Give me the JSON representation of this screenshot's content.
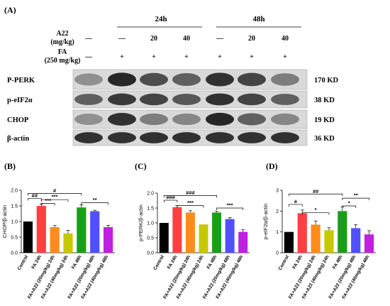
{
  "panel_a": {
    "label": "(A)",
    "group_24h": "24h",
    "group_48h": "48h",
    "a22_label_1": "A22",
    "a22_label_2": "(mg/kg)",
    "fa_label_1": "FA",
    "fa_label_2": "(250 mg/kg)",
    "a22_row": [
      "—",
      "—",
      "20",
      "40",
      "—",
      "20",
      "40"
    ],
    "fa_row": [
      "—",
      "+",
      "+",
      "+",
      "+",
      "+",
      "+"
    ],
    "blots": [
      {
        "protein": "P-PERK",
        "size": "170 KD",
        "intensity": [
          0.35,
          0.9,
          0.7,
          0.6,
          0.85,
          0.75,
          0.45
        ]
      },
      {
        "protein": "p-eIF2α",
        "size": "38 KD",
        "intensity": [
          0.6,
          0.8,
          0.75,
          0.65,
          0.85,
          0.75,
          0.6
        ]
      },
      {
        "protein": "CHOP",
        "size": "19 KD",
        "intensity": [
          0.35,
          0.85,
          0.45,
          0.4,
          0.9,
          0.6,
          0.4
        ]
      },
      {
        "protein": "β-actin",
        "size": "36 KD",
        "intensity": [
          0.85,
          0.85,
          0.85,
          0.85,
          0.85,
          0.85,
          0.85
        ]
      }
    ]
  },
  "chart_data": [
    {
      "panel": "(B)",
      "type": "bar",
      "ylabel": "CHOP/β-actin",
      "ylim": [
        0,
        2.0
      ],
      "yticks": [
        "0.0",
        "0.5",
        "1.0",
        "1.5",
        "2.0"
      ],
      "categories": [
        "Control",
        "FA 24h",
        "FA+A22 (20mg/kg) 24h",
        "FA+A22 (40mg/kg) 24h",
        "FA 48h",
        "FA+A22 (20mg/kg) 48h",
        "FA+A22 (40mg/kg) 48h"
      ],
      "values": [
        1.0,
        1.5,
        0.82,
        0.62,
        1.45,
        1.33,
        0.82
      ],
      "errors": [
        0.0,
        0.06,
        0.05,
        0.1,
        0.08,
        0.03,
        0.06
      ],
      "colors": [
        "#000000",
        "#ff4040",
        "#ff8c1a",
        "#c8c800",
        "#1a9e1a",
        "#5050ff",
        "#c020e0"
      ],
      "annotations": [
        {
          "text": "#",
          "from": 0,
          "to": 4,
          "level": 1.9
        },
        {
          "text": "##",
          "from": 0,
          "to": 1,
          "level": 1.74
        },
        {
          "text": "***",
          "from": 1,
          "to": 2,
          "level": 1.58
        },
        {
          "text": "***",
          "from": 1,
          "to": 3,
          "level": 1.7
        },
        {
          "text": "**",
          "from": 4,
          "to": 6,
          "level": 1.6
        }
      ]
    },
    {
      "panel": "(C)",
      "type": "bar",
      "ylabel": "p-PERK/β-actin",
      "ylim": [
        0,
        2.0
      ],
      "yticks": [
        "0.0",
        "0.5",
        "1.0",
        "1.5",
        "2.0"
      ],
      "categories": [
        "Control",
        "FA 24h",
        "FA+A22 (20mg/kg) 24h",
        "FA+A22 (40mg/kg) 24h",
        "FA 48h",
        "FA+A22 (20mg/kg) 48h",
        "FA+A22 (40mg/kg) 48h"
      ],
      "values": [
        1.0,
        1.53,
        1.35,
        0.95,
        1.35,
        1.13,
        0.7
      ],
      "errors": [
        0.0,
        0.05,
        0.06,
        0.0,
        0.04,
        0.05,
        0.07
      ],
      "colors": [
        "#000000",
        "#ff4040",
        "#ff8c1a",
        "#c8c800",
        "#1a9e1a",
        "#5050ff",
        "#c020e0"
      ],
      "annotations": [
        {
          "text": "###",
          "from": 0,
          "to": 4,
          "level": 1.92
        },
        {
          "text": "###",
          "from": 0,
          "to": 1,
          "level": 1.76
        },
        {
          "text": "***",
          "from": 1,
          "to": 3,
          "level": 1.58
        },
        {
          "text": "***",
          "from": 4,
          "to": 6,
          "level": 1.5
        }
      ]
    },
    {
      "panel": "(D)",
      "type": "bar",
      "ylabel": "p-eIF2α/β-actin",
      "ylim": [
        0,
        3
      ],
      "yticks": [
        "0",
        "1",
        "2",
        "3"
      ],
      "categories": [
        "Control",
        "FA 24h",
        "FA+A22 (20mg/kg) 24h",
        "FA+A22 (40mg/kg) 24h",
        "FA 48h",
        "FA+A22 (20mg/kg) 48h",
        "FA+A22 (40mg/kg) 48h"
      ],
      "values": [
        1.0,
        1.9,
        1.35,
        1.08,
        2.0,
        1.18,
        0.88
      ],
      "errors": [
        0.0,
        0.15,
        0.18,
        0.12,
        0.2,
        0.17,
        0.18
      ],
      "colors": [
        "#000000",
        "#ff4040",
        "#ff8c1a",
        "#c8c800",
        "#1a9e1a",
        "#5050ff",
        "#c020e0"
      ],
      "annotations": [
        {
          "text": "##",
          "from": 0,
          "to": 4,
          "level": 2.82
        },
        {
          "text": "#",
          "from": 0,
          "to": 1,
          "level": 2.32
        },
        {
          "text": "*",
          "from": 1,
          "to": 3,
          "level": 1.92
        },
        {
          "text": "*",
          "from": 4,
          "to": 5,
          "level": 2.25
        },
        {
          "text": "**",
          "from": 4,
          "to": 6,
          "level": 2.62
        }
      ]
    }
  ]
}
